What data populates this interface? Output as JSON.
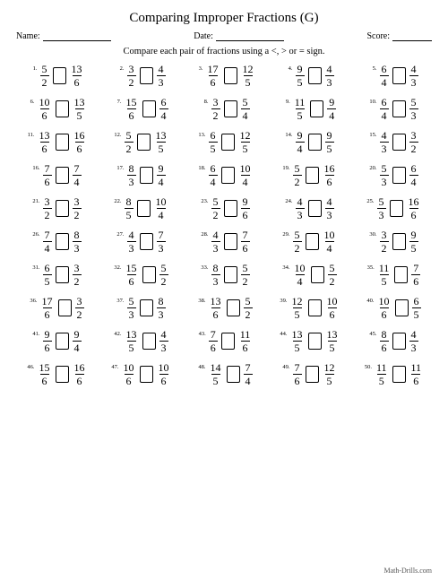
{
  "title": "Comparing Improper Fractions (G)",
  "header": {
    "name_label": "Name:",
    "date_label": "Date:",
    "score_label": "Score:"
  },
  "instruction": "Compare each pair of fractions using a <, > or = sign.",
  "footer": "Math-Drills.com",
  "problems": [
    {
      "n": "1.",
      "l": {
        "n": "5",
        "d": "2"
      },
      "r": {
        "n": "13",
        "d": "6"
      }
    },
    {
      "n": "2.",
      "l": {
        "n": "3",
        "d": "2"
      },
      "r": {
        "n": "4",
        "d": "3"
      }
    },
    {
      "n": "3.",
      "l": {
        "n": "17",
        "d": "6"
      },
      "r": {
        "n": "12",
        "d": "5"
      }
    },
    {
      "n": "4.",
      "l": {
        "n": "9",
        "d": "5"
      },
      "r": {
        "n": "4",
        "d": "3"
      }
    },
    {
      "n": "5.",
      "l": {
        "n": "6",
        "d": "4"
      },
      "r": {
        "n": "4",
        "d": "3"
      }
    },
    {
      "n": "6.",
      "l": {
        "n": "10",
        "d": "6"
      },
      "r": {
        "n": "13",
        "d": "5"
      }
    },
    {
      "n": "7.",
      "l": {
        "n": "15",
        "d": "6"
      },
      "r": {
        "n": "6",
        "d": "4"
      }
    },
    {
      "n": "8.",
      "l": {
        "n": "3",
        "d": "2"
      },
      "r": {
        "n": "5",
        "d": "4"
      }
    },
    {
      "n": "9.",
      "l": {
        "n": "11",
        "d": "5"
      },
      "r": {
        "n": "9",
        "d": "4"
      }
    },
    {
      "n": "10.",
      "l": {
        "n": "6",
        "d": "4"
      },
      "r": {
        "n": "5",
        "d": "3"
      }
    },
    {
      "n": "11.",
      "l": {
        "n": "13",
        "d": "6"
      },
      "r": {
        "n": "16",
        "d": "6"
      }
    },
    {
      "n": "12.",
      "l": {
        "n": "5",
        "d": "2"
      },
      "r": {
        "n": "13",
        "d": "5"
      }
    },
    {
      "n": "13.",
      "l": {
        "n": "6",
        "d": "5"
      },
      "r": {
        "n": "12",
        "d": "5"
      }
    },
    {
      "n": "14.",
      "l": {
        "n": "9",
        "d": "4"
      },
      "r": {
        "n": "9",
        "d": "5"
      }
    },
    {
      "n": "15.",
      "l": {
        "n": "4",
        "d": "3"
      },
      "r": {
        "n": "3",
        "d": "2"
      }
    },
    {
      "n": "16.",
      "l": {
        "n": "7",
        "d": "6"
      },
      "r": {
        "n": "7",
        "d": "4"
      }
    },
    {
      "n": "17.",
      "l": {
        "n": "8",
        "d": "3"
      },
      "r": {
        "n": "9",
        "d": "4"
      }
    },
    {
      "n": "18.",
      "l": {
        "n": "6",
        "d": "4"
      },
      "r": {
        "n": "10",
        "d": "4"
      }
    },
    {
      "n": "19.",
      "l": {
        "n": "5",
        "d": "2"
      },
      "r": {
        "n": "16",
        "d": "6"
      }
    },
    {
      "n": "20.",
      "l": {
        "n": "5",
        "d": "3"
      },
      "r": {
        "n": "6",
        "d": "4"
      }
    },
    {
      "n": "21.",
      "l": {
        "n": "3",
        "d": "2"
      },
      "r": {
        "n": "3",
        "d": "2"
      }
    },
    {
      "n": "22.",
      "l": {
        "n": "8",
        "d": "5"
      },
      "r": {
        "n": "10",
        "d": "4"
      }
    },
    {
      "n": "23.",
      "l": {
        "n": "5",
        "d": "2"
      },
      "r": {
        "n": "9",
        "d": "6"
      }
    },
    {
      "n": "24.",
      "l": {
        "n": "4",
        "d": "3"
      },
      "r": {
        "n": "4",
        "d": "3"
      }
    },
    {
      "n": "25.",
      "l": {
        "n": "5",
        "d": "3"
      },
      "r": {
        "n": "16",
        "d": "6"
      }
    },
    {
      "n": "26.",
      "l": {
        "n": "7",
        "d": "4"
      },
      "r": {
        "n": "8",
        "d": "3"
      }
    },
    {
      "n": "27.",
      "l": {
        "n": "4",
        "d": "3"
      },
      "r": {
        "n": "7",
        "d": "3"
      }
    },
    {
      "n": "28.",
      "l": {
        "n": "4",
        "d": "3"
      },
      "r": {
        "n": "7",
        "d": "6"
      }
    },
    {
      "n": "29.",
      "l": {
        "n": "5",
        "d": "2"
      },
      "r": {
        "n": "10",
        "d": "4"
      }
    },
    {
      "n": "30.",
      "l": {
        "n": "3",
        "d": "2"
      },
      "r": {
        "n": "9",
        "d": "5"
      }
    },
    {
      "n": "31.",
      "l": {
        "n": "6",
        "d": "5"
      },
      "r": {
        "n": "3",
        "d": "2"
      }
    },
    {
      "n": "32.",
      "l": {
        "n": "15",
        "d": "6"
      },
      "r": {
        "n": "5",
        "d": "2"
      }
    },
    {
      "n": "33.",
      "l": {
        "n": "8",
        "d": "3"
      },
      "r": {
        "n": "5",
        "d": "2"
      }
    },
    {
      "n": "34.",
      "l": {
        "n": "10",
        "d": "4"
      },
      "r": {
        "n": "5",
        "d": "2"
      }
    },
    {
      "n": "35.",
      "l": {
        "n": "11",
        "d": "5"
      },
      "r": {
        "n": "7",
        "d": "6"
      }
    },
    {
      "n": "36.",
      "l": {
        "n": "17",
        "d": "6"
      },
      "r": {
        "n": "3",
        "d": "2"
      }
    },
    {
      "n": "37.",
      "l": {
        "n": "5",
        "d": "3"
      },
      "r": {
        "n": "8",
        "d": "3"
      }
    },
    {
      "n": "38.",
      "l": {
        "n": "13",
        "d": "6"
      },
      "r": {
        "n": "5",
        "d": "2"
      }
    },
    {
      "n": "39.",
      "l": {
        "n": "12",
        "d": "5"
      },
      "r": {
        "n": "10",
        "d": "6"
      }
    },
    {
      "n": "40.",
      "l": {
        "n": "10",
        "d": "6"
      },
      "r": {
        "n": "6",
        "d": "5"
      }
    },
    {
      "n": "41.",
      "l": {
        "n": "9",
        "d": "6"
      },
      "r": {
        "n": "9",
        "d": "4"
      }
    },
    {
      "n": "42.",
      "l": {
        "n": "13",
        "d": "5"
      },
      "r": {
        "n": "4",
        "d": "3"
      }
    },
    {
      "n": "43.",
      "l": {
        "n": "7",
        "d": "6"
      },
      "r": {
        "n": "11",
        "d": "6"
      }
    },
    {
      "n": "44.",
      "l": {
        "n": "13",
        "d": "5"
      },
      "r": {
        "n": "13",
        "d": "5"
      }
    },
    {
      "n": "45.",
      "l": {
        "n": "8",
        "d": "6"
      },
      "r": {
        "n": "4",
        "d": "3"
      }
    },
    {
      "n": "46.",
      "l": {
        "n": "15",
        "d": "6"
      },
      "r": {
        "n": "16",
        "d": "6"
      }
    },
    {
      "n": "47.",
      "l": {
        "n": "10",
        "d": "6"
      },
      "r": {
        "n": "10",
        "d": "6"
      }
    },
    {
      "n": "48.",
      "l": {
        "n": "14",
        "d": "5"
      },
      "r": {
        "n": "7",
        "d": "4"
      }
    },
    {
      "n": "49.",
      "l": {
        "n": "7",
        "d": "6"
      },
      "r": {
        "n": "12",
        "d": "5"
      }
    },
    {
      "n": "50.",
      "l": {
        "n": "11",
        "d": "5"
      },
      "r": {
        "n": "11",
        "d": "6"
      }
    }
  ]
}
